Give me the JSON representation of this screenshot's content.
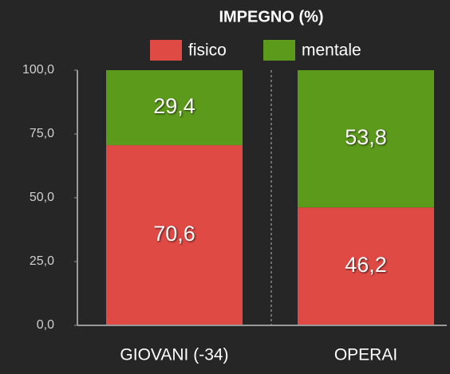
{
  "chart_data": {
    "type": "stacked_bar",
    "title": "IMPEGNO (%)",
    "categories": [
      "GIOVANI (-34)",
      "OPERAI"
    ],
    "series": [
      {
        "name": "fisico",
        "color": "#e04a45",
        "values": [
          70.6,
          46.2
        ],
        "value_labels": [
          "70,6",
          "46,2"
        ]
      },
      {
        "name": "mentale",
        "color": "#5c9a1c",
        "values": [
          29.4,
          53.8
        ],
        "value_labels": [
          "29,4",
          "53,8"
        ]
      }
    ],
    "ylim": [
      0,
      100
    ],
    "yticks": [
      {
        "value": 0,
        "label": "0,0"
      },
      {
        "value": 25,
        "label": "25,0"
      },
      {
        "value": 50,
        "label": "50,0"
      },
      {
        "value": 75,
        "label": "75,0"
      },
      {
        "value": 100,
        "label": "100,0"
      }
    ]
  }
}
